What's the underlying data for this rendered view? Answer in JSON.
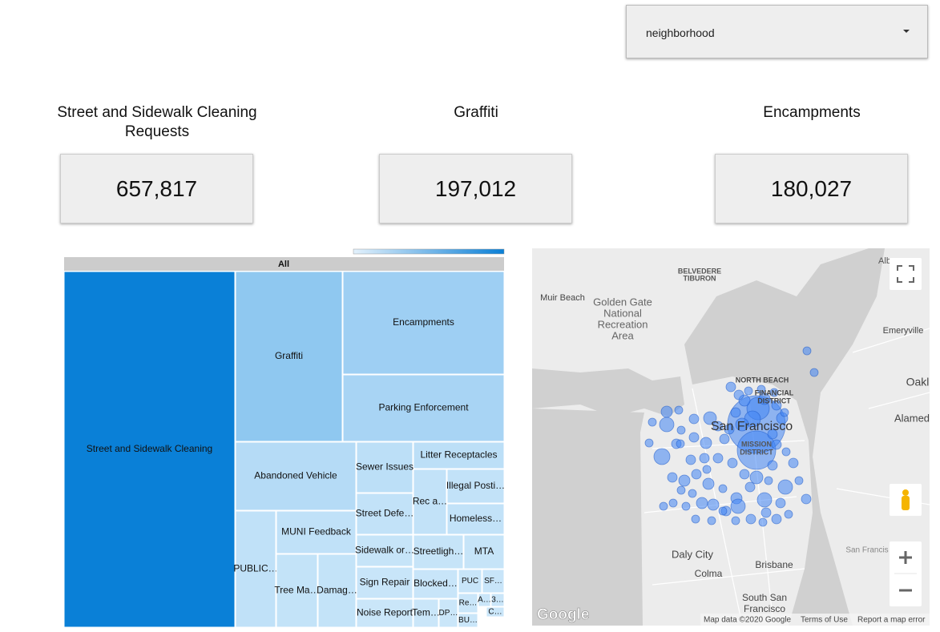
{
  "filter": {
    "label": "neighborhood"
  },
  "kpis": [
    {
      "title": "Street and Sidewalk Cleaning Requests",
      "value": "657,817"
    },
    {
      "title": "Graffiti",
      "value": "197,012"
    },
    {
      "title": "Encampments",
      "value": "180,027"
    }
  ],
  "treemap": {
    "root": "All",
    "nodes": [
      "Street and Sidewalk Cleaning",
      "Graffiti",
      "Encampments",
      "Parking Enforcement",
      "Abandoned Vehicle",
      "Sewer Issues",
      "Litter Receptacles",
      "Rec a…",
      "Illegal Posti…",
      "Homeless…",
      "Street Defe…",
      "MUNI Feedback",
      "PUBLIC…",
      "Tree Ma…",
      "Damag…",
      "Sidewalk or…",
      "Streetligh…",
      "MTA",
      "Sign Repair",
      "Blocked…",
      "PUC",
      "SF…",
      "Noise Report",
      "Tem…",
      "DP…",
      "Re…",
      "A…",
      "3…",
      "C…",
      "BU…"
    ]
  },
  "map": {
    "labels": [
      "BELVEDERE",
      "TIBURON",
      "Muir Beach",
      "Golden Gate",
      "National",
      "Recreation",
      "Area",
      "Alb",
      "NORTH BEACH",
      "FINANCIAL",
      "DISTRICT",
      "San Francisco",
      "MISSION",
      "DISTRICT",
      "Emeryville",
      "Oakl",
      "Alamed",
      "Daly City",
      "Colma",
      "Brisbane",
      "South San",
      "Francisco",
      "San Francis"
    ],
    "logo": "Google",
    "attribution": "Map data ©2020 Google",
    "links": [
      "Terms of Use",
      "Report a map error"
    ]
  }
}
